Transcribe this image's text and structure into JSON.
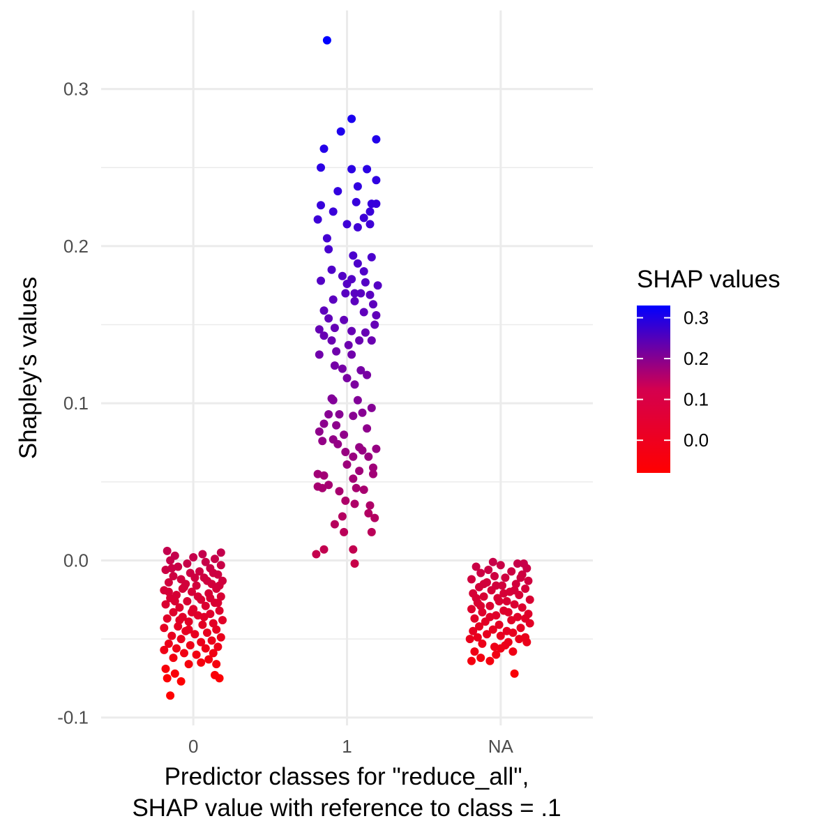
{
  "chart_data": {
    "type": "scatter",
    "title": "",
    "xlabel": "Predictor classes for \"reduce_all\",\nSHAP value with reference to class = .1",
    "ylabel": "Shapley's values",
    "categories": [
      "0",
      "1",
      "NA"
    ],
    "ylim": [
      -0.105,
      0.35
    ],
    "y_ticks": [
      "-0.1",
      "0.0",
      "0.1",
      "0.2",
      "0.3"
    ],
    "grid": true,
    "legend": {
      "title": "SHAP values",
      "placement": "right",
      "ticks": [
        "0.3",
        "0.2",
        "0.1",
        "0.0"
      ],
      "colors": {
        "low": "#ff0000",
        "high": "#0000ff"
      },
      "range": [
        -0.08,
        0.33
      ]
    },
    "series": [
      {
        "category": "0",
        "points": [
          [
            -0.15,
            -0.086
          ],
          [
            -0.08,
            -0.077
          ],
          [
            -0.17,
            -0.075
          ],
          [
            0.17,
            -0.075
          ],
          [
            -0.12,
            -0.072
          ],
          [
            0.14,
            -0.073
          ],
          [
            -0.18,
            -0.069
          ],
          [
            0.15,
            -0.066
          ],
          [
            -0.03,
            -0.066
          ],
          [
            0.05,
            -0.065
          ],
          [
            0.1,
            -0.063
          ],
          [
            -0.13,
            -0.062
          ],
          [
            0.02,
            -0.06
          ],
          [
            -0.06,
            -0.059
          ],
          [
            0.13,
            -0.059
          ],
          [
            -0.19,
            -0.057
          ],
          [
            -0.11,
            -0.056
          ],
          [
            0.08,
            -0.056
          ],
          [
            0.16,
            -0.055
          ],
          [
            -0.02,
            -0.054
          ],
          [
            -0.16,
            -0.053
          ],
          [
            0.05,
            -0.052
          ],
          [
            0.12,
            -0.051
          ],
          [
            -0.08,
            -0.05
          ],
          [
            0.18,
            -0.049
          ],
          [
            -0.14,
            -0.048
          ],
          [
            0.01,
            -0.047
          ],
          [
            0.09,
            -0.046
          ],
          [
            -0.05,
            -0.045
          ],
          [
            0.15,
            -0.044
          ],
          [
            -0.19,
            -0.043
          ],
          [
            -0.1,
            -0.042
          ],
          [
            0.06,
            -0.041
          ],
          [
            0.13,
            -0.04
          ],
          [
            -0.03,
            -0.039
          ],
          [
            0.19,
            -0.038
          ],
          [
            -0.17,
            -0.037
          ],
          [
            -0.07,
            -0.036
          ],
          [
            0.03,
            -0.035
          ],
          [
            0.11,
            -0.034
          ],
          [
            -0.13,
            -0.033
          ],
          [
            0.17,
            -0.032
          ],
          [
            0.0,
            -0.031
          ],
          [
            -0.09,
            -0.03
          ],
          [
            0.08,
            -0.029
          ],
          [
            -0.18,
            -0.028
          ],
          [
            0.14,
            -0.027
          ],
          [
            -0.04,
            -0.026
          ],
          [
            0.05,
            -0.025
          ],
          [
            -0.15,
            -0.024
          ],
          [
            0.18,
            -0.023
          ],
          [
            -0.11,
            -0.022
          ],
          [
            0.1,
            -0.021
          ],
          [
            -0.01,
            -0.02
          ],
          [
            -0.19,
            -0.019
          ],
          [
            0.15,
            -0.018
          ],
          [
            -0.06,
            -0.017
          ],
          [
            0.02,
            -0.016
          ],
          [
            0.12,
            -0.015
          ],
          [
            -0.16,
            -0.014
          ],
          [
            0.19,
            -0.013
          ],
          [
            -0.08,
            -0.012
          ],
          [
            0.07,
            -0.011
          ],
          [
            -0.13,
            -0.01
          ],
          [
            0.16,
            -0.009
          ],
          [
            -0.02,
            -0.008
          ],
          [
            0.04,
            -0.007
          ],
          [
            -0.18,
            -0.006
          ],
          [
            0.11,
            -0.005
          ],
          [
            -0.1,
            -0.004
          ],
          [
            0.18,
            -0.003
          ],
          [
            -0.04,
            -0.002
          ],
          [
            0.08,
            -0.001
          ],
          [
            -0.15,
            0.0
          ],
          [
            0.14,
            0.001
          ],
          [
            0.0,
            0.002
          ],
          [
            -0.12,
            0.003
          ],
          [
            0.06,
            0.004
          ],
          [
            -0.17,
            0.006
          ],
          [
            0.18,
            0.005
          ],
          [
            -0.07,
            -0.018
          ],
          [
            0.03,
            -0.023
          ],
          [
            -0.12,
            -0.026
          ],
          [
            0.09,
            -0.013
          ],
          [
            -0.01,
            -0.033
          ],
          [
            0.13,
            -0.008
          ],
          [
            -0.16,
            -0.02
          ],
          [
            0.01,
            -0.011
          ],
          [
            -0.09,
            -0.038
          ],
          [
            0.16,
            -0.027
          ],
          [
            -0.05,
            -0.015
          ],
          [
            0.07,
            -0.036
          ],
          [
            -0.14,
            -0.005
          ],
          [
            0.11,
            -0.024
          ],
          [
            -0.03,
            -0.044
          ],
          [
            0.17,
            -0.016
          ]
        ]
      },
      {
        "category": "1",
        "points": [
          [
            -0.13,
            0.331
          ],
          [
            0.03,
            0.281
          ],
          [
            -0.04,
            0.273
          ],
          [
            0.19,
            0.268
          ],
          [
            -0.15,
            0.262
          ],
          [
            -0.17,
            0.25
          ],
          [
            0.03,
            0.249
          ],
          [
            0.13,
            0.249
          ],
          [
            0.19,
            0.242
          ],
          [
            0.07,
            0.238
          ],
          [
            -0.06,
            0.235
          ],
          [
            -0.17,
            0.226
          ],
          [
            0.06,
            0.228
          ],
          [
            0.16,
            0.227
          ],
          [
            0.19,
            0.227
          ],
          [
            -0.09,
            0.222
          ],
          [
            0.15,
            0.222
          ],
          [
            -0.19,
            0.217
          ],
          [
            0.11,
            0.218
          ],
          [
            0.0,
            0.214
          ],
          [
            0.07,
            0.212
          ],
          [
            0.15,
            0.214
          ],
          [
            -0.13,
            0.205
          ],
          [
            -0.12,
            0.198
          ],
          [
            0.04,
            0.194
          ],
          [
            0.16,
            0.193
          ],
          [
            0.07,
            0.189
          ],
          [
            -0.1,
            0.185
          ],
          [
            0.11,
            0.184
          ],
          [
            -0.03,
            0.181
          ],
          [
            0.03,
            0.179
          ],
          [
            -0.17,
            0.178
          ],
          [
            0.0,
            0.176
          ],
          [
            0.12,
            0.177
          ],
          [
            0.2,
            0.175
          ],
          [
            -0.01,
            0.17
          ],
          [
            0.05,
            0.17
          ],
          [
            0.09,
            0.17
          ],
          [
            0.15,
            0.169
          ],
          [
            -0.09,
            0.166
          ],
          [
            0.05,
            0.165
          ],
          [
            0.17,
            0.163
          ],
          [
            -0.15,
            0.159
          ],
          [
            0.11,
            0.158
          ],
          [
            0.19,
            0.156
          ],
          [
            -0.12,
            0.154
          ],
          [
            -0.02,
            0.153
          ],
          [
            -0.18,
            0.147
          ],
          [
            -0.08,
            0.148
          ],
          [
            0.03,
            0.146
          ],
          [
            0.12,
            0.145
          ],
          [
            -0.15,
            0.143
          ],
          [
            0.18,
            0.15
          ],
          [
            -0.1,
            0.14
          ],
          [
            0.08,
            0.14
          ],
          [
            -0.18,
            0.131
          ],
          [
            0.01,
            0.137
          ],
          [
            0.16,
            0.14
          ],
          [
            -0.07,
            0.133
          ],
          [
            0.03,
            0.131
          ],
          [
            -0.08,
            0.124
          ],
          [
            -0.03,
            0.122
          ],
          [
            0.09,
            0.121
          ],
          [
            0.13,
            0.118
          ],
          [
            0.0,
            0.116
          ],
          [
            0.05,
            0.112
          ],
          [
            -0.1,
            0.103
          ],
          [
            -0.12,
            0.093
          ],
          [
            -0.09,
            0.102
          ],
          [
            0.07,
            0.102
          ],
          [
            0.16,
            0.097
          ],
          [
            -0.05,
            0.093
          ],
          [
            0.04,
            0.092
          ],
          [
            0.1,
            0.094
          ],
          [
            -0.15,
            0.087
          ],
          [
            -0.07,
            0.086
          ],
          [
            0.13,
            0.084
          ],
          [
            -0.18,
            0.082
          ],
          [
            -0.02,
            0.08
          ],
          [
            -0.09,
            0.077
          ],
          [
            -0.16,
            0.076
          ],
          [
            -0.06,
            0.074
          ],
          [
            0.08,
            0.072
          ],
          [
            -0.01,
            0.069
          ],
          [
            0.04,
            0.066
          ],
          [
            0.1,
            0.07
          ],
          [
            0.19,
            0.071
          ],
          [
            0.14,
            0.066
          ],
          [
            0.0,
            0.061
          ],
          [
            0.17,
            0.059
          ],
          [
            -0.19,
            0.055
          ],
          [
            -0.15,
            0.054
          ],
          [
            0.08,
            0.057
          ],
          [
            0.17,
            0.055
          ],
          [
            -0.12,
            0.048
          ],
          [
            0.04,
            0.052
          ],
          [
            -0.16,
            0.046
          ],
          [
            -0.05,
            0.044
          ],
          [
            0.06,
            0.046
          ],
          [
            0.11,
            0.045
          ],
          [
            -0.19,
            0.047
          ],
          [
            -0.01,
            0.038
          ],
          [
            0.05,
            0.036
          ],
          [
            0.15,
            0.035
          ],
          [
            -0.03,
            0.028
          ],
          [
            0.14,
            0.03
          ],
          [
            0.18,
            0.027
          ],
          [
            -0.08,
            0.023
          ],
          [
            0.16,
            0.018
          ],
          [
            -0.15,
            0.007
          ],
          [
            0.04,
            0.007
          ],
          [
            -0.2,
            0.004
          ],
          [
            0.05,
            -0.002
          ],
          [
            -0.02,
            0.018
          ]
        ]
      },
      {
        "category": "NA",
        "points": [
          [
            -0.19,
            -0.064
          ],
          [
            -0.07,
            -0.064
          ],
          [
            -0.13,
            -0.062
          ],
          [
            0.09,
            -0.072
          ],
          [
            -0.03,
            -0.06
          ],
          [
            0.08,
            -0.058
          ],
          [
            -0.17,
            -0.058
          ],
          [
            0.0,
            -0.056
          ],
          [
            -0.04,
            -0.055
          ],
          [
            0.03,
            -0.054
          ],
          [
            -0.12,
            -0.053
          ],
          [
            -0.2,
            -0.05
          ],
          [
            0.05,
            -0.052
          ],
          [
            0.17,
            -0.052
          ],
          [
            0.12,
            -0.05
          ],
          [
            -0.15,
            -0.049
          ],
          [
            0.0,
            -0.048
          ],
          [
            0.16,
            -0.049
          ],
          [
            -0.09,
            -0.047
          ],
          [
            0.08,
            -0.046
          ],
          [
            -0.18,
            -0.045
          ],
          [
            0.04,
            -0.045
          ],
          [
            -0.05,
            -0.044
          ],
          [
            0.13,
            -0.043
          ],
          [
            -0.14,
            -0.042
          ],
          [
            -0.01,
            -0.041
          ],
          [
            0.19,
            -0.04
          ],
          [
            -0.1,
            -0.039
          ],
          [
            0.07,
            -0.038
          ],
          [
            -0.17,
            -0.037
          ],
          [
            0.11,
            -0.036
          ],
          [
            -0.03,
            -0.035
          ],
          [
            0.18,
            -0.034
          ],
          [
            -0.12,
            -0.033
          ],
          [
            0.02,
            -0.032
          ],
          [
            -0.19,
            -0.031
          ],
          [
            0.14,
            -0.03
          ],
          [
            -0.07,
            -0.029
          ],
          [
            0.09,
            -0.028
          ],
          [
            -0.15,
            -0.027
          ],
          [
            0.04,
            -0.026
          ],
          [
            0.19,
            -0.025
          ],
          [
            -0.02,
            -0.024
          ],
          [
            -0.11,
            -0.023
          ],
          [
            0.12,
            -0.022
          ],
          [
            -0.18,
            -0.021
          ],
          [
            0.06,
            -0.02
          ],
          [
            -0.06,
            -0.019
          ],
          [
            0.16,
            -0.018
          ],
          [
            -0.14,
            -0.017
          ],
          [
            0.01,
            -0.016
          ],
          [
            0.1,
            -0.015
          ],
          [
            -0.09,
            -0.014
          ],
          [
            0.18,
            -0.013
          ],
          [
            -0.19,
            -0.012
          ],
          [
            0.03,
            -0.011
          ],
          [
            -0.04,
            -0.01
          ],
          [
            0.14,
            -0.009
          ],
          [
            -0.13,
            -0.008
          ],
          [
            0.07,
            -0.007
          ],
          [
            -0.08,
            -0.006
          ],
          [
            0.17,
            -0.005
          ],
          [
            -0.16,
            -0.004
          ],
          [
            0.0,
            -0.003
          ],
          [
            0.11,
            -0.002
          ],
          [
            -0.05,
            -0.001
          ],
          [
            0.15,
            -0.002
          ],
          [
            -0.11,
            -0.015
          ],
          [
            0.05,
            -0.033
          ],
          [
            -0.01,
            -0.026
          ],
          [
            0.09,
            -0.019
          ],
          [
            -0.16,
            -0.024
          ],
          [
            0.13,
            -0.011
          ],
          [
            -0.07,
            -0.036
          ],
          [
            0.02,
            -0.021
          ],
          [
            -0.13,
            -0.029
          ],
          [
            0.16,
            -0.037
          ],
          [
            -0.03,
            -0.016
          ]
        ]
      }
    ]
  }
}
